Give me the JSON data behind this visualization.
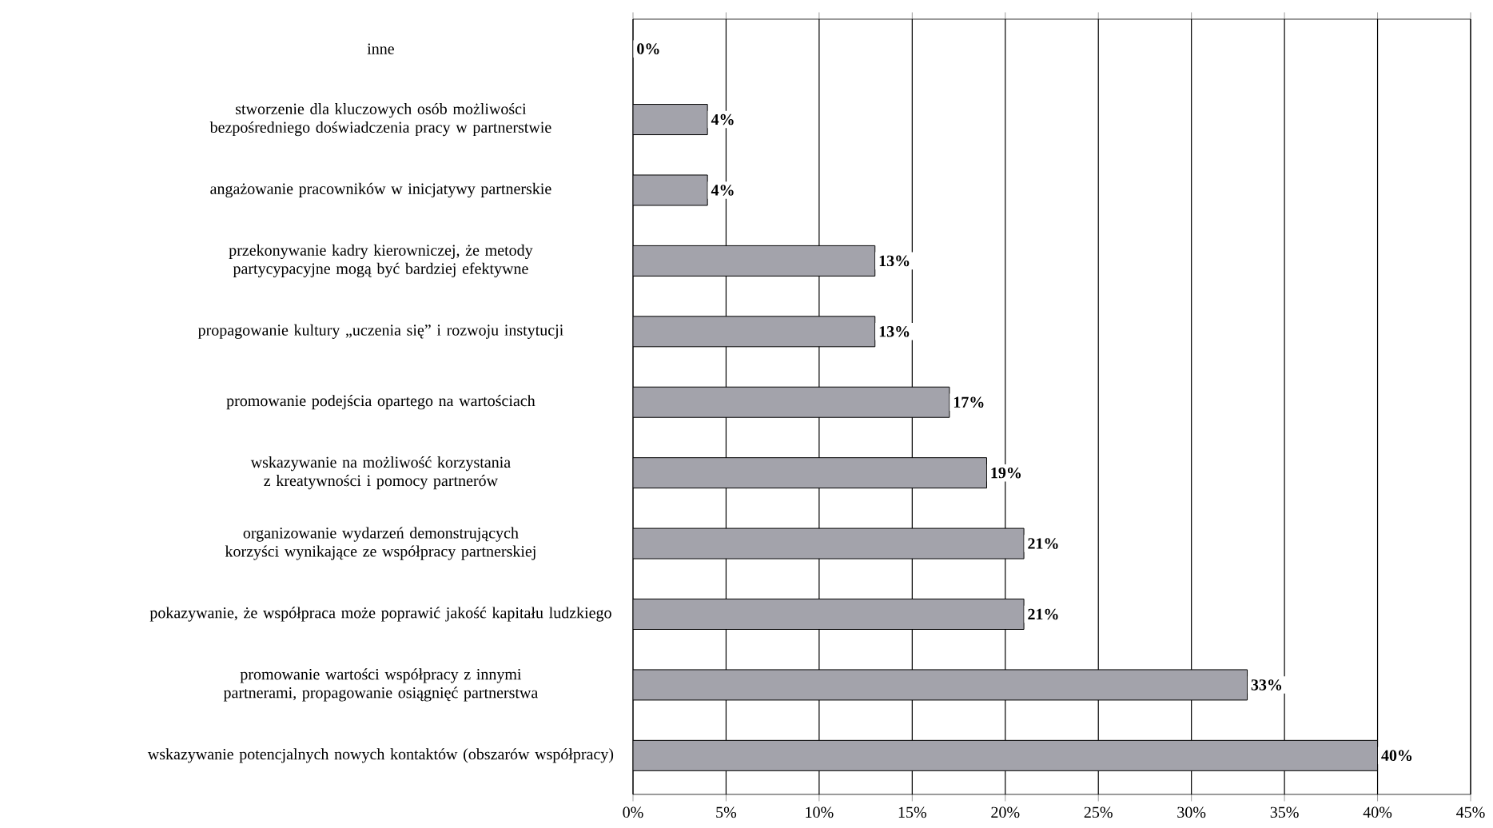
{
  "chart_data": {
    "type": "bar",
    "orientation": "horizontal",
    "categories": [
      "inne",
      "stworzenie dla kluczowych osób możliwości bezpośredniego doświadczenia pracy w partnerstwie",
      "angażowanie pracowników w inicjatywy partnerskie",
      "przekonywanie kadry kierowniczej, że metody partycypacyjne mogą być bardziej efektywne",
      "propagowanie kultury „uczenia się” i rozwoju instytucji",
      "promowanie podejścia opartego na wartościach",
      "wskazywanie na możliwość korzystania z kreatywności i pomocy partnerów",
      "organizowanie wydarzeń demonstrujących korzyści wynikające ze współpracy partnerskiej",
      "pokazywanie, że współpraca może poprawić jakość kapitału ludzkiego",
      "promowanie wartości współpracy z innymi partnerami, propagowanie osiągnięć partnerstwa",
      "wskazywanie potencjalnych nowych kontaktów (obszarów współpracy)"
    ],
    "values": [
      0,
      4,
      4,
      13,
      13,
      17,
      19,
      21,
      21,
      33,
      40
    ],
    "value_labels": [
      "0%",
      "4%",
      "4%",
      "13%",
      "13%",
      "17%",
      "19%",
      "21%",
      "21%",
      "33%",
      "40%"
    ],
    "color": "#a3a3ab",
    "xlim": [
      0,
      45
    ],
    "xticks": [
      {
        "value": 0,
        "label": "0%"
      },
      {
        "value": 5,
        "label": "5%"
      },
      {
        "value": 10,
        "label": "10%"
      },
      {
        "value": 15,
        "label": "15%"
      },
      {
        "value": 20,
        "label": "20%"
      },
      {
        "value": 25,
        "label": "25%"
      },
      {
        "value": 30,
        "label": "30%"
      },
      {
        "value": 35,
        "label": "35%"
      },
      {
        "value": 40,
        "label": "40%"
      },
      {
        "value": 45,
        "label": "45%"
      }
    ],
    "grid": "x"
  }
}
